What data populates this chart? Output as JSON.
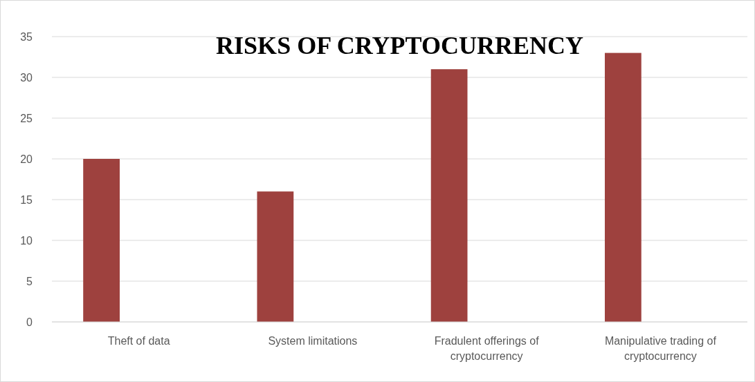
{
  "chart_data": {
    "type": "bar",
    "title": "RISKS OF CRYPTOCURRENCY",
    "categories": [
      "Theft of data",
      "System limitations",
      "Fradulent offerings of cryptocurrency",
      "Manipulative trading of cryptocurrency"
    ],
    "values": [
      20,
      16,
      31,
      33
    ],
    "color": "#9e413e",
    "ylim": [
      0,
      35
    ],
    "yticks": [
      0,
      5,
      10,
      15,
      20,
      25,
      30,
      35
    ],
    "grid": "y"
  }
}
